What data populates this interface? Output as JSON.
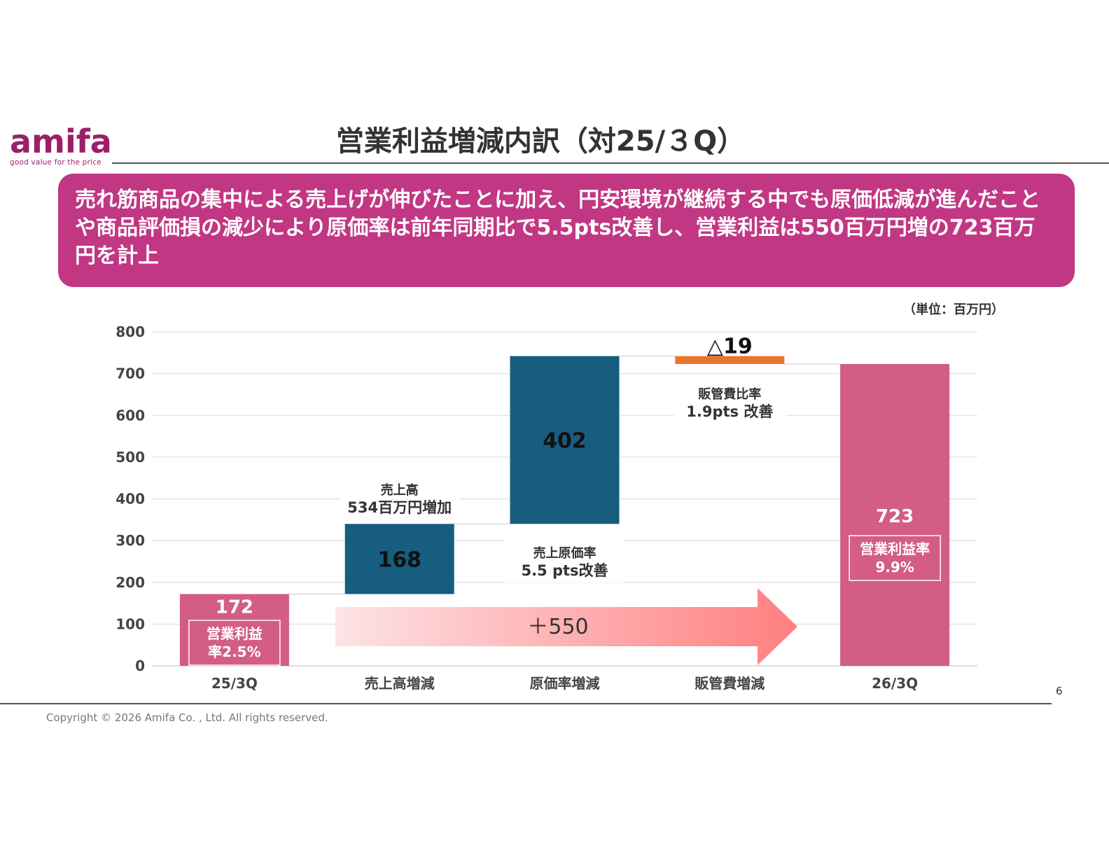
{
  "logo": {
    "word": "amifa",
    "tagline": "good value for the price"
  },
  "title": "営業利益増減内訳（対25/３Q）",
  "banner": "売れ筋商品の集中による売上げが伸びたことに加え、円安環境が継続する中でも原価低減が進んだことや商品評価損の減少により原価率は前年同期比で5.5pts改善し、営業利益は550百万円増の723百万円を計上",
  "unit_label": "（単位：百万円）",
  "colors": {
    "accent": "#c13783",
    "bar_pink": "#d35d85",
    "bar_blue": "#165d80",
    "bar_orange": "#e8762d",
    "arrow_light": "#fde3e6",
    "arrow_dark": "#ff7f7f"
  },
  "chart_data": {
    "type": "bar",
    "subtype": "waterfall",
    "categories": [
      "25/3Q",
      "売上高増減",
      "原価率増減",
      "販管費増減",
      "26/3Q"
    ],
    "steps": [
      {
        "category": "25/3Q",
        "kind": "total",
        "value": 172,
        "label": "172"
      },
      {
        "category": "売上高増減",
        "kind": "delta",
        "value": 168,
        "label": "168"
      },
      {
        "category": "原価率増減",
        "kind": "delta",
        "value": 402,
        "label": "402"
      },
      {
        "category": "販管費増減",
        "kind": "delta",
        "value": -19,
        "label": "△19"
      },
      {
        "category": "26/3Q",
        "kind": "total",
        "value": 723,
        "label": "723"
      }
    ],
    "ylim": [
      0,
      800
    ],
    "yticks": [
      0,
      100,
      200,
      300,
      400,
      500,
      600,
      700,
      800
    ],
    "grid": true,
    "annotations": {
      "start_ratio": [
        "営業利益",
        "率2.5%"
      ],
      "end_ratio": [
        "営業利益率",
        "9.9%"
      ],
      "sales": [
        "売上高",
        "534百万円増加"
      ],
      "cost": [
        "売上原価率",
        "5.5 pts改善"
      ],
      "sga": [
        "販管費比率",
        "1.9pts 改善"
      ],
      "arrow": "＋550"
    }
  },
  "footer": {
    "page": "6",
    "copyright": "Copyright © 2026 Amifa Co. , Ltd. All rights reserved."
  }
}
